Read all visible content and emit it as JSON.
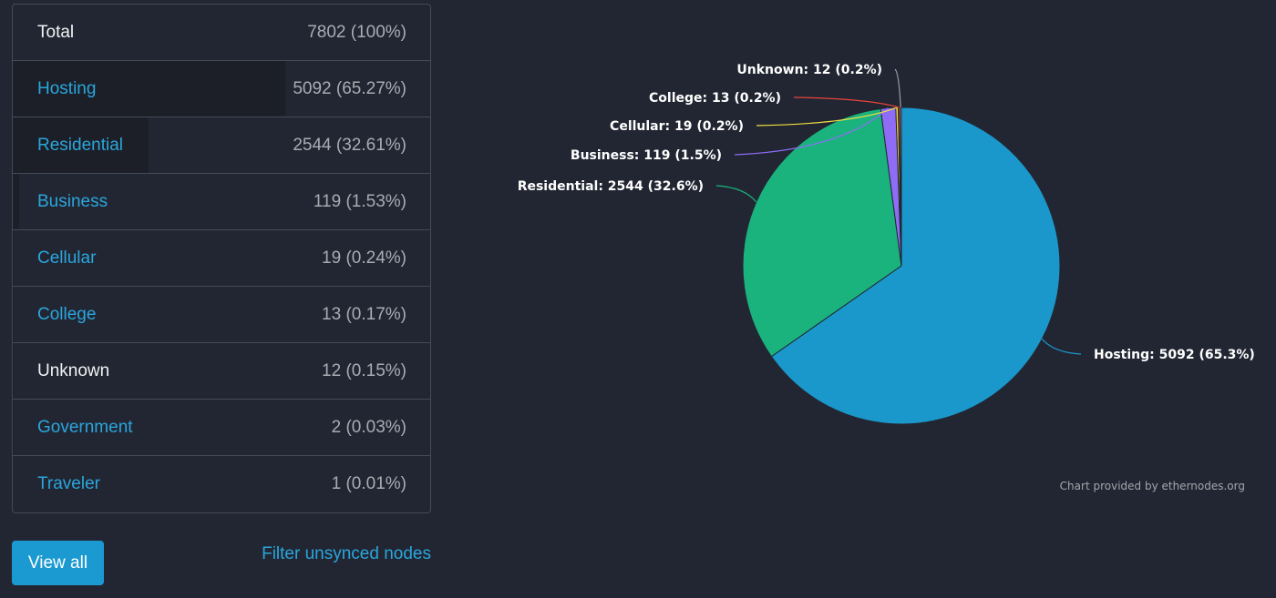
{
  "table": {
    "total": {
      "label": "Total",
      "value": "7802 (100%)"
    },
    "rows": [
      {
        "label": "Hosting",
        "value": "5092 (65.27%)",
        "share": 0.6527,
        "link": true
      },
      {
        "label": "Residential",
        "value": "2544 (32.61%)",
        "share": 0.3261,
        "link": true
      },
      {
        "label": "Business",
        "value": "119 (1.53%)",
        "share": 0.0153,
        "link": true
      },
      {
        "label": "Cellular",
        "value": "19 (0.24%)",
        "share": 0.0024,
        "link": true
      },
      {
        "label": "College",
        "value": "13 (0.17%)",
        "share": 0.0017,
        "link": true
      },
      {
        "label": "Unknown",
        "value": "12 (0.15%)",
        "share": 0.0015,
        "link": false
      },
      {
        "label": "Government",
        "value": "2 (0.03%)",
        "share": 0.0003,
        "link": true
      },
      {
        "label": "Traveler",
        "value": "1 (0.01%)",
        "share": 0.0001,
        "link": true
      }
    ]
  },
  "controls": {
    "view_all_label": "View all",
    "filter_label": "Filter unsynced nodes"
  },
  "chart_data": {
    "type": "pie",
    "slices": [
      {
        "label": "Hosting: 5092 (65.3%)",
        "name": "Hosting",
        "value": 5092,
        "color": "#1a98cb"
      },
      {
        "label": "Residential: 2544 (32.6%)",
        "name": "Residential",
        "value": 2544,
        "color": "#1ab37d"
      },
      {
        "label": "Business: 119 (1.5%)",
        "name": "Business",
        "value": 119,
        "color": "#8f6cf6"
      },
      {
        "label": "Cellular: 19 (0.2%)",
        "name": "Cellular",
        "value": 19,
        "color": "#f0e040"
      },
      {
        "label": "College: 13 (0.2%)",
        "name": "College",
        "value": 13,
        "color": "#e8443c"
      },
      {
        "label": "Unknown: 12 (0.2%)",
        "name": "Unknown",
        "value": 12,
        "color": "#9a9ea6"
      }
    ],
    "credit": "Chart provided by ethernodes.org"
  }
}
